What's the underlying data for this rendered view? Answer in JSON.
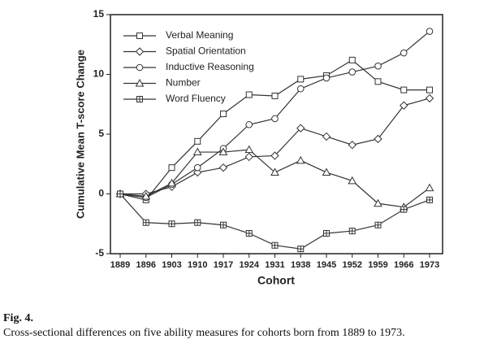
{
  "chart_data": {
    "type": "line",
    "ylabel": "Cumulative Mean T-score Change",
    "xlabel": "Cohort",
    "categories": [
      "1889",
      "1896",
      "1903",
      "1910",
      "1917",
      "1924",
      "1931",
      "1938",
      "1945",
      "1952",
      "1959",
      "1966",
      "1973"
    ],
    "ylim": [
      -5,
      15
    ],
    "yticks": [
      -5,
      0,
      5,
      10,
      15
    ],
    "grid": false,
    "legend": "upper-left",
    "series": [
      {
        "name": "Verbal Meaning",
        "color": "#333333",
        "marker": "square",
        "values": [
          0,
          -0.5,
          2.2,
          4.4,
          6.7,
          8.3,
          8.2,
          9.6,
          9.9,
          11.2,
          9.4,
          8.7,
          8.7
        ]
      },
      {
        "name": "Spatial Orientation",
        "color": "#333333",
        "marker": "diamond",
        "values": [
          0,
          0,
          0.6,
          1.8,
          2.2,
          3.1,
          3.2,
          5.5,
          4.8,
          4.1,
          4.6,
          7.4,
          8.0
        ]
      },
      {
        "name": "Inductive Reasoning",
        "color": "#333333",
        "marker": "circle",
        "values": [
          0,
          -0.3,
          0.8,
          2.2,
          3.8,
          5.8,
          6.3,
          8.8,
          9.7,
          10.2,
          10.7,
          11.8,
          13.6
        ]
      },
      {
        "name": "Number",
        "color": "#333333",
        "marker": "triangle",
        "values": [
          0,
          -0.2,
          0.9,
          3.5,
          3.5,
          3.7,
          1.8,
          2.8,
          1.8,
          1.1,
          -0.8,
          -1.1,
          0.5
        ]
      },
      {
        "name": "Word Fluency",
        "color": "#333333",
        "marker": "plus-square",
        "values": [
          0,
          -2.4,
          -2.5,
          -2.4,
          -2.6,
          -3.3,
          -4.3,
          -4.6,
          -3.3,
          -3.1,
          -2.6,
          -1.3,
          -0.5
        ]
      }
    ]
  },
  "caption": {
    "label": "Fig. 4.",
    "text": "Cross-sectional differences on five ability measures for cohorts born from 1889 to 1973."
  }
}
